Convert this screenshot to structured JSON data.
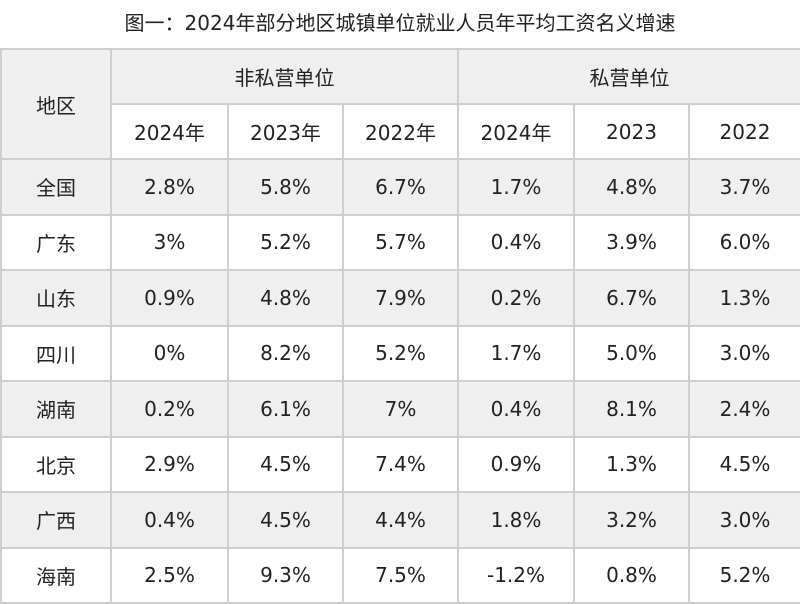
{
  "title": "图一：2024年部分地区城镇单位就业人员年平均工资名义增速",
  "header": {
    "region": "地区",
    "group_nonprivate": "非私营单位",
    "group_private": "私营单位",
    "years": [
      "2024年",
      "2023年",
      "2022年",
      "2024年",
      "2023",
      "2022"
    ]
  },
  "rows": [
    {
      "region": "全国",
      "values": [
        "2.8%",
        "5.8%",
        "6.7%",
        "1.7%",
        "4.8%",
        "3.7%"
      ]
    },
    {
      "region": "广东",
      "values": [
        "3%",
        "5.2%",
        "5.7%",
        "0.4%",
        "3.9%",
        "6.0%"
      ]
    },
    {
      "region": "山东",
      "values": [
        "0.9%",
        "4.8%",
        "7.9%",
        "0.2%",
        "6.7%",
        "1.3%"
      ]
    },
    {
      "region": "四川",
      "values": [
        "0%",
        "8.2%",
        "5.2%",
        "1.7%",
        "5.0%",
        "3.0%"
      ]
    },
    {
      "region": "湖南",
      "values": [
        "0.2%",
        "6.1%",
        "7%",
        "0.4%",
        "8.1%",
        "2.4%"
      ]
    },
    {
      "region": "北京",
      "values": [
        "2.9%",
        "4.5%",
        "7.4%",
        "0.9%",
        "1.3%",
        "4.5%"
      ]
    },
    {
      "region": "广西",
      "values": [
        "0.4%",
        "4.5%",
        "4.4%",
        "1.8%",
        "3.2%",
        "3.0%"
      ]
    },
    {
      "region": "海南",
      "values": [
        "2.5%",
        "9.3%",
        "7.5%",
        "-1.2%",
        "0.8%",
        "5.2%"
      ]
    }
  ]
}
